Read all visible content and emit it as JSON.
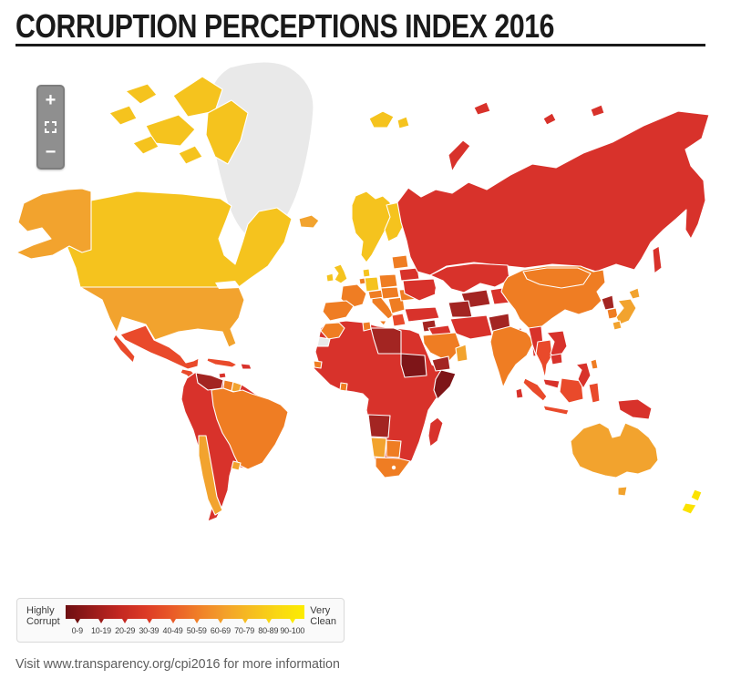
{
  "title": "CORRUPTION PERCEPTIONS INDEX 2016",
  "map_controls": {
    "zoom_in": "+",
    "zoom_out": "−",
    "reset_icon": "fullscreen-corners"
  },
  "legend": {
    "left_label_line1": "Highly",
    "left_label_line2": "Corrupt",
    "right_label_line1": "Very",
    "right_label_line2": "Clean",
    "ranges": [
      "0-9",
      "10-19",
      "20-29",
      "30-39",
      "40-49",
      "50-59",
      "60-69",
      "70-79",
      "80-89",
      "90-100"
    ],
    "tick_colors": [
      "#70100f",
      "#9b1b19",
      "#c42721",
      "#dc3a25",
      "#e95a28",
      "#f07f28",
      "#f3a02a",
      "#f6bd20",
      "#f9d813",
      "#fcec00"
    ],
    "gradient": [
      "#6e0f12",
      "#981b1a",
      "#c22721",
      "#dc3a25",
      "#e95a28",
      "#f07f28",
      "#f3a02a",
      "#f6bd20",
      "#f9d813",
      "#fcec00"
    ]
  },
  "footer": "Visit www.transparency.org/cpi2016 for more information",
  "map": {
    "palette": {
      "nodata": "#e9e9e9",
      "verydark": "#7e1518",
      "darkred": "#a32522",
      "red": "#d8322b",
      "redorange": "#e94a2b",
      "orange": "#ef7d23",
      "amber": "#f2a32e",
      "yellow": "#f5c31e",
      "brightyellow": "#fbe200",
      "water": "#ffffff"
    }
  }
}
